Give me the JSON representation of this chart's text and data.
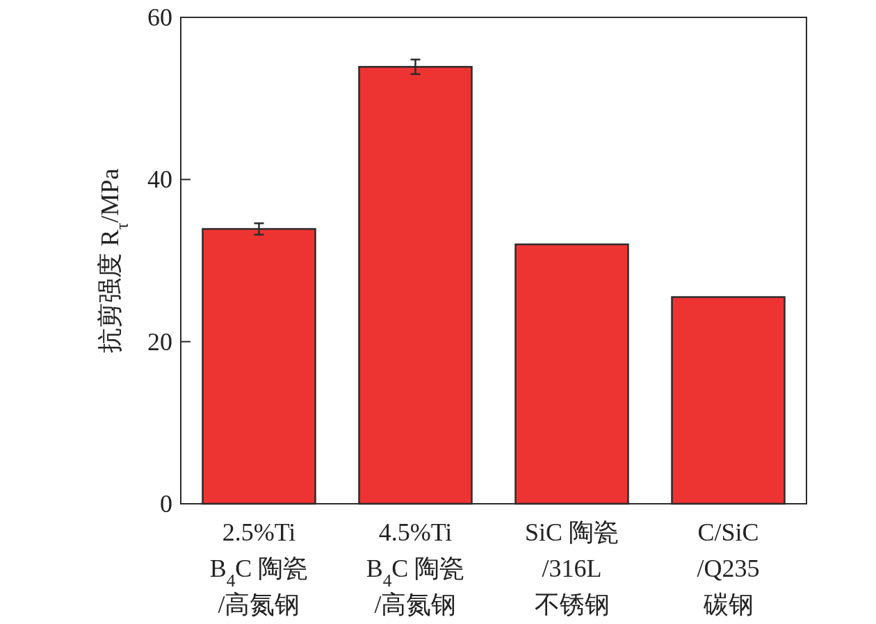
{
  "chart_data": {
    "type": "bar",
    "ylabel": "抗剪强度 R$_{τ}$/MPa",
    "categories": [
      "2.5%Ti\nB$_{4}$C 陶瓷\n/高氮钢",
      "4.5%Ti\nB$_{4}$C 陶瓷\n/高氮钢",
      "SiC 陶瓷\n/316L\n不锈钢",
      "C/SiC\n/Q235\n碳钢"
    ],
    "values": [
      33.9,
      53.9,
      32.0,
      25.5
    ],
    "errors": [
      0.7,
      0.9,
      null,
      null
    ],
    "color": "#ee3433",
    "ylim": [
      0,
      60
    ],
    "yticks": [
      0,
      20,
      40,
      60
    ],
    "grid": false
  }
}
